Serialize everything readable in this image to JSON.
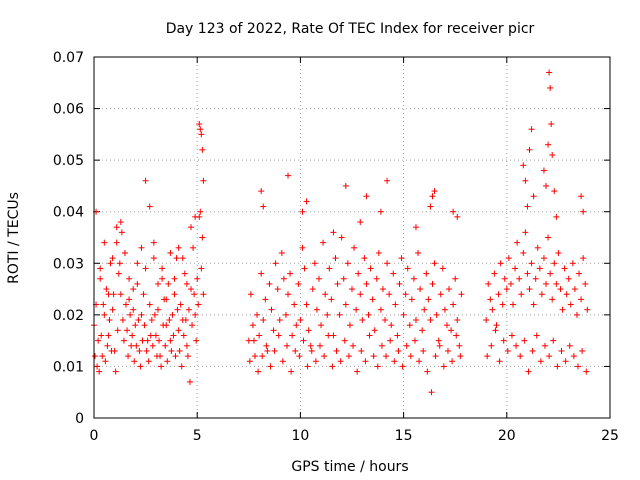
{
  "chart_data": {
    "type": "scatter",
    "title": "Day 123 of 2022, Rate Of TEC Index for receiver picr",
    "xlabel": "GPS time / hours",
    "ylabel": "ROTI / TECUs",
    "xlim": [
      0,
      25
    ],
    "ylim": [
      0,
      0.07
    ],
    "xticks": [
      "0",
      "5",
      "10",
      "15",
      "20",
      "25"
    ],
    "yticks": [
      "0",
      "0.01",
      "0.02",
      "0.03",
      "0.04",
      "0.05",
      "0.06",
      "0.07"
    ],
    "grid": true,
    "marker": "+",
    "color": "#ff0000",
    "series": [
      {
        "x": [
          0.0,
          0.1,
          0.2,
          0.3,
          0.4,
          0.5,
          0.6,
          0.7,
          0.8,
          0.9,
          1.0,
          1.1,
          1.2,
          1.3,
          1.4,
          1.5,
          1.6,
          1.7,
          1.8,
          1.9,
          2.0,
          2.1,
          2.2,
          2.3,
          2.4,
          2.5,
          2.6,
          2.7,
          2.8,
          2.9,
          3.0,
          3.1,
          3.2,
          3.3,
          3.4,
          3.5,
          3.6,
          3.7,
          3.8,
          3.9,
          4.0,
          4.1,
          4.2,
          4.3,
          4.4,
          4.5,
          4.6,
          4.7,
          4.8,
          4.9,
          5.0,
          5.1,
          5.2,
          5.3,
          0.05,
          0.15,
          0.25,
          0.35,
          0.45,
          0.55,
          0.65,
          0.75,
          0.85,
          0.95,
          1.05,
          1.15,
          1.25,
          1.35,
          1.45,
          1.55,
          1.65,
          1.75,
          1.85,
          1.95,
          2.05,
          2.15,
          2.25,
          2.35,
          2.45,
          2.55,
          2.65,
          2.75,
          2.85,
          2.95,
          3.05,
          3.15,
          3.25,
          3.35,
          3.45,
          3.55,
          3.65,
          3.75,
          3.85,
          3.95,
          4.05,
          4.15,
          4.25,
          4.35,
          4.45,
          4.55,
          4.65,
          4.75,
          4.85,
          4.95,
          5.05,
          5.15,
          5.25,
          0.1,
          0.3,
          0.5,
          0.7,
          0.9,
          1.1,
          1.3,
          1.5,
          1.7,
          1.9,
          2.1,
          2.3,
          2.5,
          2.7,
          2.9,
          3.1,
          3.3,
          3.5,
          3.7,
          3.9,
          4.1,
          4.3,
          4.5,
          4.7,
          4.9,
          5.1,
          5.2,
          5.25,
          5.3,
          5.15,
          7.5,
          7.6,
          7.7,
          7.8,
          7.9,
          8.0,
          8.1,
          8.2,
          8.3,
          8.4,
          8.5,
          8.6,
          8.7,
          8.8,
          8.9,
          9.0,
          9.1,
          9.2,
          9.3,
          9.4,
          9.5,
          9.6,
          9.7,
          9.8,
          9.9,
          10.0,
          10.1,
          10.2,
          10.3,
          10.4,
          10.5,
          10.6,
          10.7,
          10.8,
          10.9,
          11.0,
          11.1,
          11.2,
          11.3,
          11.4,
          11.5,
          11.6,
          11.7,
          11.8,
          11.9,
          12.0,
          12.1,
          12.2,
          12.3,
          12.4,
          12.5,
          12.6,
          12.7,
          12.8,
          12.9,
          13.0,
          13.1,
          13.2,
          13.3,
          13.4,
          13.5,
          13.6,
          13.7,
          13.8,
          13.9,
          14.0,
          14.1,
          14.2,
          14.3,
          14.4,
          14.5,
          14.6,
          14.7,
          14.8,
          14.9,
          15.0,
          15.1,
          15.2,
          15.3,
          15.4,
          15.5,
          15.6,
          15.7,
          15.8,
          15.9,
          16.0,
          16.1,
          16.2,
          16.3,
          16.4,
          16.5,
          16.6,
          16.7,
          16.8,
          16.9,
          17.0,
          17.1,
          17.2,
          17.3,
          17.4,
          17.5,
          17.6,
          17.7,
          17.8,
          7.55,
          7.75,
          7.95,
          8.15,
          8.35,
          8.55,
          8.75,
          8.95,
          9.15,
          9.35,
          9.55,
          9.75,
          9.95,
          10.15,
          10.35,
          10.55,
          10.75,
          10.95,
          11.15,
          11.35,
          11.55,
          11.75,
          11.95,
          12.15,
          12.35,
          12.55,
          12.75,
          12.95,
          13.15,
          13.35,
          13.55,
          13.75,
          13.95,
          14.15,
          14.35,
          14.55,
          14.75,
          14.95,
          15.15,
          15.35,
          15.55,
          15.75,
          15.95,
          16.15,
          16.35,
          16.55,
          16.75,
          16.95,
          17.15,
          17.35,
          17.55,
          17.75,
          8.1,
          8.2,
          9.4,
          10.1,
          10.3,
          11.6,
          12.2,
          12.9,
          13.2,
          13.9,
          14.2,
          15.6,
          16.3,
          16.4,
          16.5,
          17.4,
          17.6,
          19.0,
          19.1,
          19.2,
          19.3,
          19.4,
          19.5,
          19.6,
          19.7,
          19.8,
          19.9,
          20.0,
          20.1,
          20.2,
          20.3,
          20.4,
          20.5,
          20.6,
          20.7,
          20.8,
          20.9,
          21.0,
          21.1,
          21.2,
          21.3,
          21.4,
          21.5,
          21.6,
          21.7,
          21.8,
          21.9,
          22.0,
          22.1,
          22.2,
          22.3,
          22.4,
          22.5,
          22.6,
          22.7,
          22.8,
          22.9,
          23.0,
          23.1,
          23.2,
          23.3,
          23.4,
          23.5,
          23.6,
          23.7,
          23.8,
          23.9,
          19.05,
          19.25,
          19.45,
          19.65,
          19.85,
          20.05,
          20.25,
          20.45,
          20.65,
          20.85,
          21.05,
          21.25,
          21.45,
          21.65,
          21.85,
          22.05,
          22.25,
          22.45,
          22.65,
          22.85,
          23.05,
          23.25,
          23.45,
          23.65,
          23.85,
          20.8,
          20.9,
          21.0,
          21.1,
          21.2,
          21.3,
          21.8,
          21.9,
          22.0,
          22.05,
          22.1,
          22.15,
          22.2,
          22.3,
          22.4,
          23.6,
          23.7
        ],
        "y": [
          0.018,
          0.022,
          0.015,
          0.027,
          0.012,
          0.02,
          0.025,
          0.016,
          0.03,
          0.021,
          0.013,
          0.034,
          0.028,
          0.024,
          0.019,
          0.032,
          0.017,
          0.023,
          0.014,
          0.021,
          0.018,
          0.026,
          0.013,
          0.02,
          0.024,
          0.029,
          0.015,
          0.022,
          0.019,
          0.031,
          0.016,
          0.021,
          0.012,
          0.027,
          0.023,
          0.018,
          0.026,
          0.015,
          0.02,
          0.024,
          0.031,
          0.017,
          0.022,
          0.019,
          0.028,
          0.014,
          0.021,
          0.025,
          0.033,
          0.02,
          0.027,
          0.039,
          0.029,
          0.024,
          0.012,
          0.01,
          0.009,
          0.016,
          0.022,
          0.011,
          0.014,
          0.019,
          0.013,
          0.024,
          0.009,
          0.017,
          0.03,
          0.036,
          0.015,
          0.022,
          0.012,
          0.02,
          0.016,
          0.011,
          0.014,
          0.019,
          0.01,
          0.015,
          0.018,
          0.013,
          0.011,
          0.016,
          0.014,
          0.02,
          0.012,
          0.015,
          0.01,
          0.018,
          0.014,
          0.011,
          0.019,
          0.013,
          0.016,
          0.012,
          0.021,
          0.013,
          0.01,
          0.016,
          0.019,
          0.012,
          0.007,
          0.018,
          0.024,
          0.015,
          0.022,
          0.04,
          0.035,
          0.04,
          0.029,
          0.034,
          0.024,
          0.031,
          0.037,
          0.038,
          0.032,
          0.027,
          0.025,
          0.03,
          0.033,
          0.046,
          0.041,
          0.034,
          0.026,
          0.029,
          0.023,
          0.032,
          0.027,
          0.033,
          0.031,
          0.026,
          0.037,
          0.039,
          0.057,
          0.055,
          0.052,
          0.046,
          0.056,
          0.015,
          0.024,
          0.018,
          0.012,
          0.02,
          0.016,
          0.028,
          0.019,
          0.023,
          0.013,
          0.026,
          0.021,
          0.017,
          0.03,
          0.025,
          0.019,
          0.032,
          0.027,
          0.02,
          0.024,
          0.028,
          0.016,
          0.022,
          0.018,
          0.026,
          0.019,
          0.033,
          0.029,
          0.022,
          0.017,
          0.014,
          0.025,
          0.03,
          0.021,
          0.027,
          0.018,
          0.034,
          0.024,
          0.02,
          0.029,
          0.023,
          0.016,
          0.031,
          0.026,
          0.02,
          0.035,
          0.027,
          0.022,
          0.03,
          0.018,
          0.025,
          0.033,
          0.021,
          0.028,
          0.024,
          0.019,
          0.031,
          0.026,
          0.02,
          0.029,
          0.023,
          0.017,
          0.027,
          0.032,
          0.021,
          0.025,
          0.019,
          0.03,
          0.024,
          0.018,
          0.028,
          0.022,
          0.016,
          0.026,
          0.031,
          0.02,
          0.024,
          0.029,
          0.018,
          0.023,
          0.027,
          0.019,
          0.032,
          0.025,
          0.017,
          0.021,
          0.028,
          0.023,
          0.019,
          0.026,
          0.03,
          0.02,
          0.015,
          0.024,
          0.029,
          0.021,
          0.018,
          0.025,
          0.017,
          0.022,
          0.027,
          0.019,
          0.014,
          0.024,
          0.011,
          0.015,
          0.009,
          0.012,
          0.014,
          0.01,
          0.013,
          0.016,
          0.011,
          0.014,
          0.009,
          0.013,
          0.012,
          0.015,
          0.01,
          0.013,
          0.011,
          0.014,
          0.012,
          0.016,
          0.01,
          0.013,
          0.011,
          0.015,
          0.012,
          0.014,
          0.009,
          0.013,
          0.011,
          0.016,
          0.012,
          0.01,
          0.014,
          0.012,
          0.015,
          0.011,
          0.013,
          0.01,
          0.014,
          0.012,
          0.015,
          0.011,
          0.013,
          0.009,
          0.005,
          0.012,
          0.014,
          0.01,
          0.013,
          0.011,
          0.016,
          0.012,
          0.044,
          0.041,
          0.047,
          0.04,
          0.042,
          0.036,
          0.045,
          0.038,
          0.043,
          0.04,
          0.046,
          0.037,
          0.041,
          0.043,
          0.044,
          0.04,
          0.039,
          0.019,
          0.026,
          0.023,
          0.021,
          0.028,
          0.018,
          0.024,
          0.03,
          0.022,
          0.027,
          0.025,
          0.031,
          0.026,
          0.022,
          0.029,
          0.034,
          0.027,
          0.024,
          0.032,
          0.036,
          0.028,
          0.025,
          0.03,
          0.022,
          0.027,
          0.033,
          0.029,
          0.024,
          0.031,
          0.026,
          0.035,
          0.028,
          0.023,
          0.03,
          0.026,
          0.032,
          0.025,
          0.021,
          0.029,
          0.024,
          0.027,
          0.022,
          0.03,
          0.025,
          0.02,
          0.028,
          0.023,
          0.031,
          0.026,
          0.021,
          0.012,
          0.014,
          0.017,
          0.011,
          0.015,
          0.013,
          0.016,
          0.014,
          0.012,
          0.015,
          0.009,
          0.013,
          0.016,
          0.011,
          0.014,
          0.012,
          0.015,
          0.01,
          0.013,
          0.011,
          0.014,
          0.012,
          0.01,
          0.013,
          0.009,
          0.049,
          0.046,
          0.041,
          0.052,
          0.056,
          0.043,
          0.048,
          0.045,
          0.053,
          0.067,
          0.064,
          0.057,
          0.051,
          0.044,
          0.039,
          0.043,
          0.04
        ]
      }
    ]
  }
}
